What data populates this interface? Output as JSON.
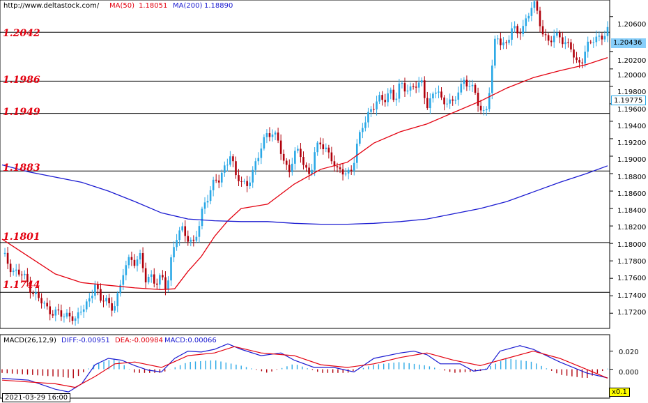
{
  "header": {
    "url": "http://www.deltastock.com/",
    "ma50_label": "MA(50)",
    "ma50_value": "1.18051",
    "ma200_label": "MA(200)",
    "ma200_value": "1.18890"
  },
  "macd_header": {
    "title": "MACD(26,12,9)",
    "diff": "DIFF:-0.00951",
    "dea": "DEA:-0.00984",
    "macd": "MACD:0.00066"
  },
  "levels": [
    "1.2042",
    "1.1986",
    "1.1949",
    "1.1883",
    "1.1801",
    "1.1744"
  ],
  "price_axis": [
    "1.20600",
    "1.20200",
    "1.20000",
    "1.19800",
    "1.19600",
    "1.19400",
    "1.19200",
    "1.19000",
    "1.18800",
    "1.18600",
    "1.18400",
    "1.18200",
    "1.18000",
    "1.17800",
    "1.17600",
    "1.17400",
    "1.17200"
  ],
  "price_tags": {
    "current": "1.20436",
    "secondary": "1.19775"
  },
  "macd_axis": [
    "0.020",
    "0.000"
  ],
  "footer": {
    "date": "2021-03-29 16:00",
    "zoom": "x0.1"
  },
  "colors": {
    "level": "#e3000f",
    "ma50": "#e3000f",
    "ma200": "#1a1ad1",
    "bull": "#2aa8e6",
    "bear": "#b0000b",
    "dif": "#1a1ad1",
    "dea": "#e3000f",
    "hist_pos": "#2aa8e6",
    "hist_neg": "#b0000b",
    "price_tag": "#87cefa"
  },
  "chart_data": [
    {
      "type": "candlestick",
      "title": "",
      "ylim": [
        1.1705,
        1.2075
      ],
      "horizontal_levels": [
        1.2042,
        1.1986,
        1.1949,
        1.1883,
        1.1801,
        1.1744
      ],
      "close_path": [
        [
          0,
          1.1788
        ],
        [
          8,
          1.177
        ],
        [
          16,
          1.1762
        ],
        [
          22,
          1.1748
        ],
        [
          28,
          1.1735
        ],
        [
          34,
          1.1725
        ],
        [
          40,
          1.1722
        ],
        [
          46,
          1.1715
        ],
        [
          52,
          1.172
        ],
        [
          56,
          1.1712
        ],
        [
          60,
          1.1722
        ],
        [
          66,
          1.1738
        ],
        [
          70,
          1.1755
        ],
        [
          74,
          1.173
        ],
        [
          78,
          1.174
        ],
        [
          82,
          1.1725
        ],
        [
          86,
          1.1735
        ],
        [
          90,
          1.175
        ],
        [
          92,
          1.1775
        ],
        [
          96,
          1.1785
        ],
        [
          100,
          1.1778
        ],
        [
          104,
          1.1782
        ],
        [
          108,
          1.176
        ],
        [
          112,
          1.1765
        ],
        [
          116,
          1.1752
        ],
        [
          120,
          1.176
        ],
        [
          124,
          1.175
        ],
        [
          128,
          1.179
        ],
        [
          132,
          1.1808
        ],
        [
          136,
          1.1815
        ],
        [
          140,
          1.1808
        ],
        [
          144,
          1.18
        ],
        [
          148,
          1.1815
        ],
        [
          152,
          1.1845
        ],
        [
          156,
          1.186
        ],
        [
          160,
          1.1872
        ],
        [
          164,
          1.187
        ],
        [
          168,
          1.189
        ],
        [
          172,
          1.1905
        ],
        [
          176,
          1.1875
        ],
        [
          180,
          1.187
        ],
        [
          184,
          1.1868
        ],
        [
          188,
          1.188
        ],
        [
          192,
          1.1892
        ],
        [
          196,
          1.1915
        ],
        [
          200,
          1.193
        ],
        [
          204,
          1.1925
        ],
        [
          208,
          1.1915
        ],
        [
          212,
          1.1895
        ],
        [
          216,
          1.1885
        ],
        [
          220,
          1.19
        ],
        [
          224,
          1.1905
        ],
        [
          228,
          1.1888
        ],
        [
          232,
          1.188
        ],
        [
          236,
          1.1905
        ],
        [
          240,
          1.1915
        ],
        [
          244,
          1.191
        ],
        [
          248,
          1.1898
        ],
        [
          252,
          1.188
        ],
        [
          256,
          1.1885
        ],
        [
          260,
          1.1882
        ],
        [
          264,
          1.1885
        ],
        [
          268,
          1.1915
        ],
        [
          272,
          1.194
        ],
        [
          276,
          1.195
        ],
        [
          280,
          1.1955
        ],
        [
          284,
          1.1965
        ],
        [
          288,
          1.1968
        ],
        [
          292,
          1.1975
        ],
        [
          296,
          1.196
        ],
        [
          300,
          1.1985
        ],
        [
          304,
          1.198
        ],
        [
          308,
          1.1975
        ],
        [
          312,
          1.198
        ],
        [
          316,
          1.1985
        ],
        [
          320,
          1.196
        ],
        [
          324,
          1.1965
        ],
        [
          328,
          1.1978
        ],
        [
          332,
          1.196
        ],
        [
          336,
          1.1968
        ],
        [
          340,
          1.1955
        ],
        [
          344,
          1.1978
        ],
        [
          348,
          1.1988
        ],
        [
          352,
          1.1982
        ],
        [
          356,
          1.197
        ],
        [
          360,
          1.1955
        ],
        [
          364,
          1.195
        ],
        [
          368,
          1.1985
        ],
        [
          372,
          1.204
        ],
        [
          376,
          1.203
        ],
        [
          380,
          1.203
        ],
        [
          384,
          1.2045
        ],
        [
          388,
          1.204
        ],
        [
          392,
          1.205
        ],
        [
          396,
          1.206
        ],
        [
          400,
          1.2075
        ],
        [
          404,
          1.206
        ],
        [
          408,
          1.204
        ],
        [
          412,
          1.203
        ],
        [
          416,
          1.2035
        ],
        [
          420,
          1.204
        ],
        [
          424,
          1.203
        ],
        [
          428,
          1.2025
        ],
        [
          432,
          1.2005
        ],
        [
          436,
          1.201
        ],
        [
          440,
          1.2025
        ],
        [
          444,
          1.203
        ],
        [
          448,
          1.2035
        ],
        [
          452,
          1.204
        ],
        [
          456,
          1.20436
        ]
      ],
      "series": [
        {
          "name": "MA(50)",
          "values": [
            [
              0,
              1.1805
            ],
            [
              20,
              1.1785
            ],
            [
              40,
              1.1765
            ],
            [
              60,
              1.1755
            ],
            [
              80,
              1.1752
            ],
            [
              100,
              1.1749
            ],
            [
              120,
              1.1747
            ],
            [
              130,
              1.1748
            ],
            [
              140,
              1.1768
            ],
            [
              150,
              1.1785
            ],
            [
              160,
              1.1808
            ],
            [
              170,
              1.1826
            ],
            [
              180,
              1.184
            ],
            [
              200,
              1.1845
            ],
            [
              220,
              1.1868
            ],
            [
              240,
              1.1885
            ],
            [
              260,
              1.1893
            ],
            [
              280,
              1.1915
            ],
            [
              300,
              1.1928
            ],
            [
              320,
              1.1937
            ],
            [
              340,
              1.195
            ],
            [
              360,
              1.1963
            ],
            [
              380,
              1.1978
            ],
            [
              400,
              1.199
            ],
            [
              420,
              1.1998
            ],
            [
              440,
              1.2005
            ],
            [
              456,
              1.2013
            ]
          ]
        },
        {
          "name": "MA(200)",
          "values": [
            [
              0,
              1.189
            ],
            [
              20,
              1.1882
            ],
            [
              40,
              1.1876
            ],
            [
              60,
              1.187
            ],
            [
              80,
              1.186
            ],
            [
              100,
              1.1848
            ],
            [
              120,
              1.1835
            ],
            [
              140,
              1.1828
            ],
            [
              160,
              1.1826
            ],
            [
              180,
              1.1825
            ],
            [
              200,
              1.1825
            ],
            [
              220,
              1.1823
            ],
            [
              240,
              1.1822
            ],
            [
              260,
              1.1822
            ],
            [
              280,
              1.1823
            ],
            [
              300,
              1.1825
            ],
            [
              320,
              1.1828
            ],
            [
              340,
              1.1834
            ],
            [
              360,
              1.184
            ],
            [
              380,
              1.1848
            ],
            [
              400,
              1.1859
            ],
            [
              420,
              1.187
            ],
            [
              440,
              1.188
            ],
            [
              456,
              1.1889
            ]
          ]
        }
      ]
    },
    {
      "type": "line",
      "title": "MACD(26,12,9)",
      "ylim": [
        -0.028,
        0.032
      ],
      "series": [
        {
          "name": "DIFF",
          "values": [
            [
              0,
              -0.01
            ],
            [
              20,
              -0.012
            ],
            [
              40,
              -0.022
            ],
            [
              50,
              -0.025
            ],
            [
              60,
              -0.016
            ],
            [
              70,
              0.005
            ],
            [
              80,
              0.012
            ],
            [
              90,
              0.01
            ],
            [
              100,
              0.004
            ],
            [
              110,
              -0.001
            ],
            [
              120,
              -0.003
            ],
            [
              130,
              0.012
            ],
            [
              140,
              0.02
            ],
            [
              150,
              0.019
            ],
            [
              160,
              0.022
            ],
            [
              170,
              0.028
            ],
            [
              180,
              0.022
            ],
            [
              195,
              0.015
            ],
            [
              210,
              0.018
            ],
            [
              220,
              0.01
            ],
            [
              235,
              0.002
            ],
            [
              250,
              0.002
            ],
            [
              265,
              -0.003
            ],
            [
              280,
              0.012
            ],
            [
              300,
              0.018
            ],
            [
              310,
              0.02
            ],
            [
              320,
              0.016
            ],
            [
              330,
              0.006
            ],
            [
              345,
              0.006
            ],
            [
              355,
              -0.002
            ],
            [
              365,
              0.0
            ],
            [
              375,
              0.02
            ],
            [
              390,
              0.026
            ],
            [
              400,
              0.022
            ],
            [
              420,
              0.008
            ],
            [
              440,
              -0.004
            ],
            [
              456,
              -0.00951
            ]
          ]
        },
        {
          "name": "DEA",
          "values": [
            [
              0,
              -0.012
            ],
            [
              20,
              -0.014
            ],
            [
              40,
              -0.016
            ],
            [
              55,
              -0.02
            ],
            [
              70,
              -0.008
            ],
            [
              85,
              0.006
            ],
            [
              100,
              0.008
            ],
            [
              120,
              0.002
            ],
            [
              140,
              0.015
            ],
            [
              160,
              0.018
            ],
            [
              175,
              0.025
            ],
            [
              195,
              0.018
            ],
            [
              220,
              0.015
            ],
            [
              240,
              0.005
            ],
            [
              260,
              0.002
            ],
            [
              280,
              0.006
            ],
            [
              300,
              0.013
            ],
            [
              320,
              0.018
            ],
            [
              340,
              0.01
            ],
            [
              360,
              0.004
            ],
            [
              380,
              0.012
            ],
            [
              400,
              0.02
            ],
            [
              420,
              0.012
            ],
            [
              440,
              0.0
            ],
            [
              456,
              -0.00984
            ]
          ]
        },
        {
          "name": "MACD",
          "values": [
            [
              0,
              -0.004
            ],
            [
              40,
              -0.008
            ],
            [
              55,
              -0.01
            ],
            [
              70,
              0.006
            ],
            [
              85,
              0.012
            ],
            [
              100,
              -0.004
            ],
            [
              120,
              -0.004
            ],
            [
              140,
              0.008
            ],
            [
              160,
              0.01
            ],
            [
              180,
              0.004
            ],
            [
              200,
              -0.004
            ],
            [
              220,
              0.006
            ],
            [
              240,
              -0.004
            ],
            [
              260,
              -0.004
            ],
            [
              280,
              0.005
            ],
            [
              300,
              0.008
            ],
            [
              320,
              0.004
            ],
            [
              340,
              -0.004
            ],
            [
              360,
              -0.002
            ],
            [
              380,
              0.012
            ],
            [
              400,
              0.008
            ],
            [
              420,
              -0.006
            ],
            [
              440,
              -0.01
            ],
            [
              456,
              0.00066
            ]
          ]
        }
      ]
    }
  ]
}
